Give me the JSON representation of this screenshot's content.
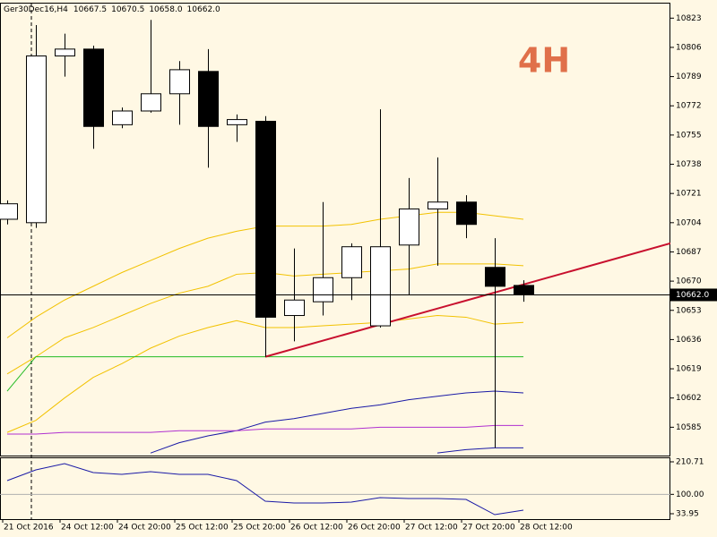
{
  "chart_data": {
    "type": "candlestick",
    "symbol": "Ger30Dec16,H4",
    "header_ohlc": [
      "10667.5",
      "10670.5",
      "10658.0",
      "10662.0"
    ],
    "annotation": "4H",
    "categories": [
      "21 Oct 2016",
      null,
      "24 Oct 12:00",
      null,
      "24 Oct 20:00",
      null,
      "25 Oct 12:00",
      null,
      "25 Oct 20:00",
      null,
      "26 Oct 12:00",
      null,
      "26 Oct 20:00",
      null,
      "27 Oct 12:00",
      null,
      "27 Oct 20:00",
      null,
      "28 Oct 12:00"
    ],
    "open": [
      10706,
      10704,
      10801,
      10805,
      10761,
      10769,
      10779,
      10792,
      10761,
      10763,
      10650,
      10658,
      10672,
      10644,
      10691,
      10712,
      10716,
      10678,
      10667.5
    ],
    "high": [
      10717,
      10819,
      10814,
      10807,
      10771,
      10822,
      10798,
      10805,
      10767,
      10766,
      10689,
      10716,
      10692,
      10770,
      10730,
      10742,
      10720,
      10695,
      10670.5
    ],
    "low": [
      10703,
      10701,
      10789,
      10747,
      10759,
      10768,
      10761,
      10736,
      10751,
      10626,
      10635,
      10650,
      10659,
      10643,
      10662,
      10679,
      10695,
      10573,
      10658
    ],
    "close": [
      10715,
      10801,
      10805,
      10760,
      10769,
      10779,
      10793,
      10760,
      10764,
      10649,
      10659,
      10672,
      10690,
      10690,
      10712,
      10716,
      10703,
      10667,
      10662
    ],
    "up_color": "#ffffff",
    "down_color": "#000000",
    "ylim": [
      10568,
      10832
    ],
    "yticks": [
      10823,
      10806,
      10789,
      10772,
      10755,
      10738,
      10721,
      10704,
      10687,
      10670,
      10653,
      10636,
      10619,
      10602,
      10585
    ],
    "last_price": {
      "value": 10662,
      "label": "10662.0"
    },
    "lines": [
      {
        "color": "#f2c200",
        "values": [
          10637,
          10649,
          10659,
          10667,
          10675,
          10682,
          10689,
          10695,
          10699,
          10702,
          10702,
          10702,
          10703,
          10706,
          10708,
          10710,
          10710,
          10708,
          10706
        ]
      },
      {
        "color": "#f2c200",
        "values": [
          10616,
          10626,
          10637,
          10643,
          10650,
          10657,
          10663,
          10667,
          10674,
          10675,
          10673,
          10674,
          10675,
          10676,
          10677,
          10680,
          10680,
          10680,
          10679
        ]
      },
      {
        "color": "#f2c200",
        "values": [
          10582,
          10589,
          10602,
          10614,
          10622,
          10631,
          10638,
          10643,
          10647,
          10643,
          10643,
          10644,
          10645,
          10646,
          10648,
          10650,
          10649,
          10645,
          10646
        ]
      },
      {
        "color": "#1a1aa6",
        "values": [
          null,
          null,
          null,
          null,
          null,
          10570,
          10576,
          10580,
          10583,
          10588,
          10590,
          10593,
          10596,
          10598,
          10601,
          10603,
          10605,
          10606,
          10605
        ]
      },
      {
        "color": "#1a1aa6",
        "values": [
          null,
          null,
          null,
          null,
          null,
          null,
          null,
          null,
          null,
          null,
          null,
          null,
          null,
          null,
          null,
          10570,
          10572,
          10573,
          10573
        ]
      },
      {
        "color": "#b030d0",
        "values": [
          10581,
          10581,
          10582,
          10582,
          10582,
          10582,
          10583,
          10583,
          10583,
          10584,
          10584,
          10584,
          10584,
          10585,
          10585,
          10585,
          10585,
          10586,
          10586
        ]
      },
      {
        "color": "#22bb22",
        "values": [
          10606,
          10626,
          10626,
          10626,
          10626,
          10626,
          10626,
          10626,
          10626,
          10626,
          10626,
          10626,
          10626,
          10626,
          10626,
          10626,
          10626,
          10626,
          10626
        ]
      }
    ],
    "trendline": {
      "color": "#c8102e",
      "x": [
        9,
        23.125
      ],
      "y": [
        10626,
        10692
      ]
    },
    "oscillator": {
      "color": "#1a1aa6",
      "values": [
        146.7,
        183.3,
        204.6,
        174.1,
        168,
        177.2,
        168,
        168,
        146.7,
        76.6,
        70.5,
        70.5,
        73.5,
        88.8,
        85.7,
        85.7,
        82.7,
        30.9,
        46.1
      ],
      "ylim": [
        15.7,
        222.9
      ],
      "yticks": [
        210.71,
        {
          "value": 100,
          "label": "100.00"
        },
        33.95
      ]
    }
  }
}
